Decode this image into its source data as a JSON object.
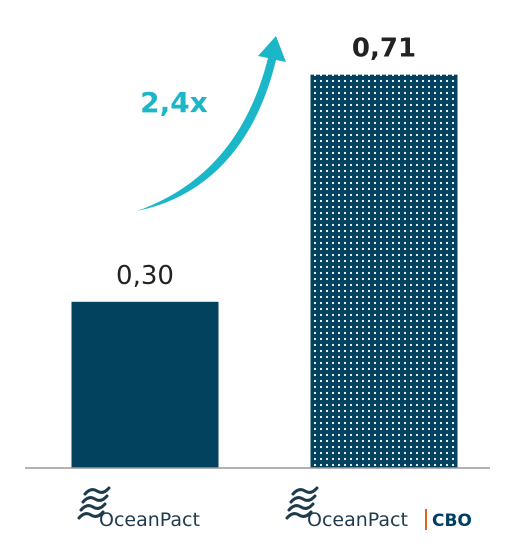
{
  "chart_data": {
    "type": "bar",
    "categories": [
      "OceanPact",
      "OceanPact | CBO"
    ],
    "values": [
      0.3,
      0.71
    ],
    "value_labels": [
      "0,30",
      "0,71"
    ],
    "ylim": [
      0,
      0.75
    ],
    "grid": false,
    "annotation": "2,4x"
  },
  "logos": [
    {
      "text": "OceanPact",
      "suffix": ""
    },
    {
      "text": "OceanPact",
      "suffix": "CBO"
    }
  ],
  "colors": {
    "bar_solid": "#03425f",
    "bar_pattern_bg": "#03425f",
    "bar_pattern_dot": "#ffffff",
    "arrow": "#1bb6c7",
    "text": "#222222",
    "annotation": "#1bb6c7",
    "logo_text": "#1e3a4d",
    "cbo": "#003e63",
    "axis": "#999999"
  },
  "icons": {
    "logo_mark": "oceanpact-waves-icon"
  }
}
